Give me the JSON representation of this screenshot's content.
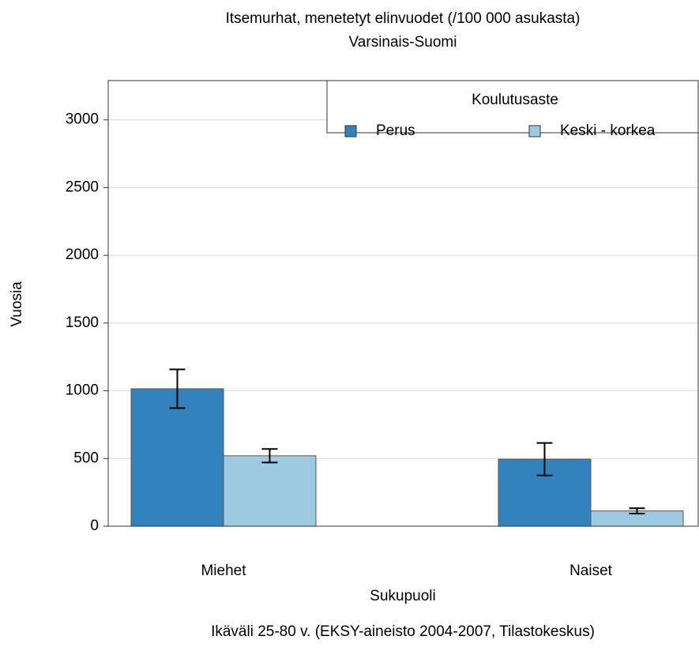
{
  "chart_data": {
    "type": "bar",
    "title": "Itsemurhat, menetetyt elinvuodet (/100 000 asukasta)",
    "subtitle": "Varsinais-Suomi",
    "x_label": "Sukupuoli",
    "y_label": "Vuosia",
    "caption": "Ikäväli 25-80 v. (EKSY-aineisto 2004-2007, Tilastokeskus)",
    "legend_title": "Koulutusaste",
    "legend_position": "top-right",
    "categories": [
      "Miehet",
      "Naiset"
    ],
    "series": [
      {
        "name": "Perus",
        "color": "#3182bd",
        "values": [
          1015,
          495
        ],
        "errors": [
          143,
          120
        ]
      },
      {
        "name": "Keski - korkea",
        "color": "#9ecae1",
        "values": [
          520,
          113
        ],
        "errors": [
          50,
          20
        ]
      }
    ],
    "ylim": [
      0,
      3290
    ],
    "yticks": [
      0,
      500,
      1000,
      1500,
      2000,
      2500,
      3000
    ],
    "grid": true
  }
}
